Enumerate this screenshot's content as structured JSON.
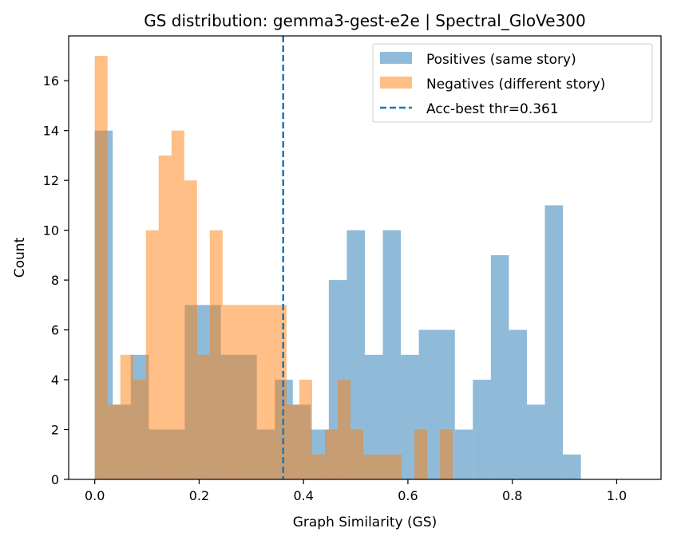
{
  "chart_data": {
    "type": "bar",
    "title": "GS distribution: gemma3-gest-e2e | Spectral_GloVe300",
    "xlabel": "Graph Similarity (GS)",
    "ylabel": "Count",
    "xlim": [
      -0.05,
      1.085
    ],
    "ylim": [
      0,
      17.8
    ],
    "xticks": [
      0.0,
      0.2,
      0.4,
      0.6,
      0.8,
      1.0
    ],
    "xtick_labels": [
      "0.0",
      "0.2",
      "0.4",
      "0.6",
      "0.8",
      "1.0"
    ],
    "yticks": [
      0,
      2,
      4,
      6,
      8,
      10,
      12,
      14,
      16
    ],
    "ytick_labels": [
      "0",
      "2",
      "4",
      "6",
      "8",
      "10",
      "12",
      "14",
      "16"
    ],
    "grid": false,
    "legend_position": "top-right",
    "threshold": {
      "label": "Acc-best thr=0.361",
      "value": 0.361,
      "color": "#1f77b4"
    },
    "series": [
      {
        "name": "Positives (same story)",
        "color": "#1f77b4",
        "bin_start": 0.0,
        "bin_width": 0.0345,
        "values": [
          14,
          3,
          5,
          2,
          2,
          7,
          7,
          5,
          5,
          2,
          4,
          3,
          2,
          8,
          10,
          5,
          10,
          5,
          6,
          6,
          2,
          4,
          9,
          6,
          3,
          11,
          1
        ]
      },
      {
        "name": "Negatives (different story)",
        "color": "#ff7f0e",
        "bin_start": 0.0,
        "bin_width": 0.0245,
        "values": [
          17,
          3,
          5,
          4,
          10,
          13,
          14,
          12,
          5,
          10,
          7,
          7,
          7,
          7,
          7,
          3,
          4,
          1,
          2,
          4,
          2,
          1,
          1,
          1,
          0,
          2,
          0,
          2,
          0,
          0,
          0,
          0,
          0,
          0,
          0,
          0,
          0,
          0,
          0,
          0,
          0,
          0,
          0
        ]
      }
    ]
  }
}
